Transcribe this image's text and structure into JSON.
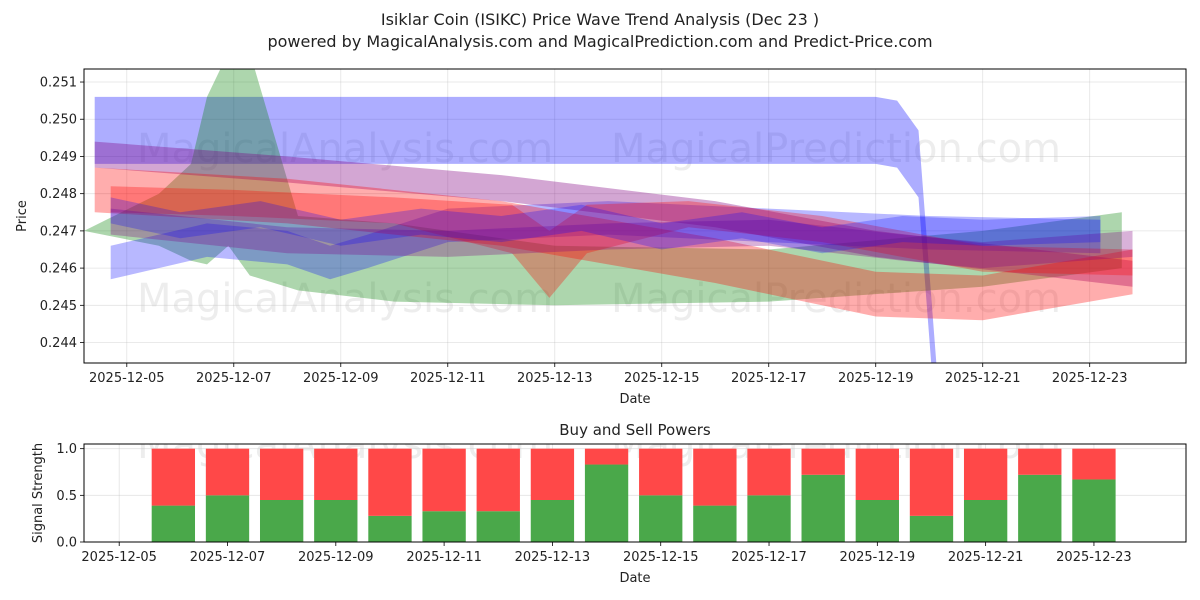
{
  "header": {
    "title": "Isiklar Coin (ISIKC) Price Wave Trend Analysis (Dec 23 )",
    "subtitle": "powered by MagicalAnalysis.com and MagicalPrediction.com and Predict-Price.com"
  },
  "watermarks": [
    "MagicalAnalysis.com",
    "MagicalPrediction.com",
    "MagicalAnalysis.com",
    "MagicalPrediction.com",
    "MagicalAnalysis.com",
    "MagicalPrediction.com"
  ],
  "colors": {
    "blue": "#0000ff",
    "green": "#008000",
    "red": "#ff0000",
    "purple": "#800080",
    "buy": "#4aa84a",
    "sell": "#ff4848"
  },
  "chart_data": [
    {
      "type": "area",
      "title": "",
      "xlabel": "Date",
      "ylabel": "Price",
      "xlim": [
        -0.8,
        19.8
      ],
      "ylim": [
        0.24345,
        0.25135
      ],
      "x_ticks": [
        {
          "pos": 0,
          "label": "2025-12-05"
        },
        {
          "pos": 2,
          "label": "2025-12-07"
        },
        {
          "pos": 4,
          "label": "2025-12-09"
        },
        {
          "pos": 6,
          "label": "2025-12-11"
        },
        {
          "pos": 8,
          "label": "2025-12-13"
        },
        {
          "pos": 10,
          "label": "2025-12-15"
        },
        {
          "pos": 12,
          "label": "2025-12-17"
        },
        {
          "pos": 14,
          "label": "2025-12-19"
        },
        {
          "pos": 16,
          "label": "2025-12-21"
        },
        {
          "pos": 18,
          "label": "2025-12-23"
        }
      ],
      "y_ticks": [
        0.244,
        0.245,
        0.246,
        0.247,
        0.248,
        0.249,
        0.25,
        0.251
      ],
      "y_tick_labels": [
        "0.244",
        "0.245",
        "0.246",
        "0.247",
        "0.248",
        "0.249",
        "0.250",
        "0.251"
      ],
      "grid": true,
      "series": [
        {
          "name": "blue-wave-1",
          "color": "blue",
          "opacity": 0.32,
          "x": [
            -0.6,
            14.0,
            14.4,
            14.8,
            15.2,
            18.8
          ],
          "upper": [
            0.2506,
            0.2506,
            0.2505,
            0.2497,
            0.2422,
            0.2422
          ],
          "lower": [
            0.2488,
            0.2488,
            0.2487,
            0.2479,
            0.2404,
            0.2404
          ]
        },
        {
          "name": "green-wave-1",
          "color": "green",
          "opacity": 0.32,
          "x": [
            -0.8,
            0.6,
            1.2,
            1.5,
            1.9,
            2.3,
            3.2,
            5.0,
            8.0,
            12.0,
            16.0,
            18.6
          ],
          "upper": [
            0.247,
            0.248,
            0.2488,
            0.2506,
            0.2518,
            0.2518,
            0.2474,
            0.2472,
            0.2466,
            0.2465,
            0.247,
            0.2475
          ],
          "lower": [
            0.247,
            0.2466,
            0.2462,
            0.2461,
            0.2466,
            0.2458,
            0.2454,
            0.2451,
            0.245,
            0.2451,
            0.2455,
            0.246
          ]
        },
        {
          "name": "blue-wave-2",
          "color": "blue",
          "opacity": 0.28,
          "x": [
            -0.3,
            1.5,
            3.0,
            3.8,
            4.5,
            6.0,
            9.0,
            12.0,
            15.0,
            18.2
          ],
          "upper": [
            0.2466,
            0.2472,
            0.247,
            0.2466,
            0.2469,
            0.2476,
            0.2478,
            0.2476,
            0.2474,
            0.2473
          ],
          "lower": [
            0.2457,
            0.2463,
            0.2461,
            0.2457,
            0.246,
            0.2467,
            0.2469,
            0.2467,
            0.2465,
            0.2464
          ]
        },
        {
          "name": "purple-wave-1",
          "color": "purple",
          "opacity": 0.35,
          "x": [
            -0.6,
            3.0,
            7.0,
            11.0,
            14.0,
            18.8
          ],
          "upper": [
            0.2494,
            0.249,
            0.2485,
            0.2478,
            0.247,
            0.2462
          ],
          "lower": [
            0.2487,
            0.2483,
            0.2478,
            0.2471,
            0.2463,
            0.2455
          ]
        },
        {
          "name": "red-wave-1",
          "color": "red",
          "opacity": 0.32,
          "x": [
            -0.6,
            3.0,
            7.0,
            11.0,
            14.0,
            16.0,
            18.8
          ],
          "upper": [
            0.2487,
            0.2484,
            0.2478,
            0.2468,
            0.2459,
            0.2458,
            0.2465
          ],
          "lower": [
            0.2475,
            0.2472,
            0.2466,
            0.2456,
            0.2447,
            0.2446,
            0.2453
          ]
        },
        {
          "name": "red-wave-2",
          "color": "red",
          "opacity": 0.3,
          "x": [
            -0.3,
            2.0,
            5.0,
            7.2,
            7.9,
            8.6,
            10.5,
            13.0,
            16.0,
            18.8
          ],
          "upper": [
            0.2482,
            0.2481,
            0.2479,
            0.2477,
            0.247,
            0.2477,
            0.2478,
            0.2474,
            0.2466,
            0.2465
          ],
          "lower": [
            0.2475,
            0.2474,
            0.2472,
            0.2464,
            0.2452,
            0.2464,
            0.2471,
            0.2467,
            0.2459,
            0.2458
          ]
        },
        {
          "name": "purple-wave-2",
          "color": "purple",
          "opacity": 0.3,
          "x": [
            -0.3,
            3.0,
            6.0,
            9.0,
            12.0,
            14.5,
            16.0,
            18.8
          ],
          "upper": [
            0.2476,
            0.2471,
            0.247,
            0.2472,
            0.2473,
            0.2469,
            0.2467,
            0.247
          ],
          "lower": [
            0.2469,
            0.2464,
            0.2463,
            0.2465,
            0.2466,
            0.2462,
            0.246,
            0.2463
          ]
        },
        {
          "name": "blue-wave-3",
          "color": "blue",
          "opacity": 0.25,
          "x": [
            -0.3,
            1.0,
            2.5,
            4.0,
            5.5,
            7.0,
            8.5,
            10.0,
            11.5,
            13.0,
            14.5,
            16.0,
            18.2
          ],
          "upper": [
            0.2479,
            0.2475,
            0.2478,
            0.2473,
            0.2476,
            0.2474,
            0.2477,
            0.2472,
            0.2475,
            0.2471,
            0.2474,
            0.2473,
            0.2474
          ],
          "lower": [
            0.2472,
            0.2468,
            0.2471,
            0.2466,
            0.2469,
            0.2467,
            0.247,
            0.2465,
            0.2468,
            0.2464,
            0.2467,
            0.2466,
            0.2467
          ]
        }
      ]
    },
    {
      "type": "bar",
      "title": "Buy and Sell Powers",
      "xlabel": "Date",
      "ylabel": "Signal Strength",
      "xlim": [
        -0.65,
        19.7
      ],
      "ylim": [
        0.0,
        1.05
      ],
      "x_ticks": [
        {
          "pos": 0,
          "label": "2025-12-05"
        },
        {
          "pos": 2,
          "label": "2025-12-07"
        },
        {
          "pos": 4,
          "label": "2025-12-09"
        },
        {
          "pos": 6,
          "label": "2025-12-11"
        },
        {
          "pos": 8,
          "label": "2025-12-13"
        },
        {
          "pos": 10,
          "label": "2025-12-15"
        },
        {
          "pos": 12,
          "label": "2025-12-17"
        },
        {
          "pos": 14,
          "label": "2025-12-19"
        },
        {
          "pos": 16,
          "label": "2025-12-21"
        },
        {
          "pos": 18,
          "label": "2025-12-23"
        }
      ],
      "y_ticks": [
        0.0,
        0.5,
        1.0
      ],
      "y_tick_labels": [
        "0.0",
        "0.5",
        "1.0"
      ],
      "grid": true,
      "categories": [
        "2025-12-06",
        "2025-12-07",
        "2025-12-08",
        "2025-12-09",
        "2025-12-10",
        "2025-12-11",
        "2025-12-12",
        "2025-12-13",
        "2025-12-14",
        "2025-12-15",
        "2025-12-16",
        "2025-12-17",
        "2025-12-18",
        "2025-12-19",
        "2025-12-20",
        "2025-12-21",
        "2025-12-22",
        "2025-12-23"
      ],
      "x_positions": [
        1,
        2,
        3,
        4,
        5,
        6,
        7,
        8,
        9,
        10,
        11,
        12,
        13,
        14,
        15,
        16,
        17,
        18
      ],
      "series": [
        {
          "name": "Buy",
          "color": "buy",
          "values": [
            0.39,
            0.5,
            0.45,
            0.45,
            0.28,
            0.33,
            0.33,
            0.45,
            0.83,
            0.5,
            0.39,
            0.5,
            0.72,
            0.45,
            0.28,
            0.45,
            0.72,
            0.67
          ]
        },
        {
          "name": "Sell",
          "color": "sell",
          "values": [
            0.61,
            0.5,
            0.55,
            0.55,
            0.72,
            0.67,
            0.67,
            0.55,
            0.17,
            0.5,
            0.61,
            0.5,
            0.28,
            0.55,
            0.72,
            0.55,
            0.28,
            0.33
          ]
        }
      ]
    }
  ]
}
